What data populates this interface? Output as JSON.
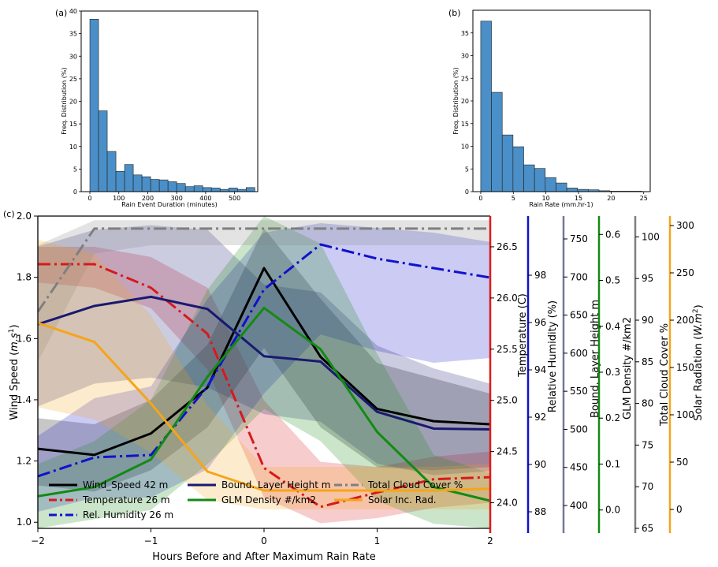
{
  "chart_data": [
    {
      "panel": "(a)",
      "type": "bar",
      "xlabel": "Rain Event Duration (minutes)",
      "ylabel": "Freq. Distribution (%)",
      "xlim": [
        -30,
        580
      ],
      "ylim": [
        0,
        40
      ],
      "xticks": [
        0,
        100,
        200,
        300,
        400,
        500
      ],
      "yticks": [
        0,
        5,
        10,
        15,
        20,
        25,
        30,
        35,
        40
      ],
      "bin_width": 30,
      "bin_starts": [
        0,
        30,
        60,
        90,
        120,
        150,
        180,
        210,
        240,
        270,
        300,
        330,
        360,
        390,
        420,
        450,
        480,
        510,
        540
      ],
      "values": [
        38.2,
        17.9,
        8.9,
        4.5,
        6.0,
        3.7,
        3.3,
        2.7,
        2.6,
        2.2,
        1.8,
        1.1,
        1.3,
        0.9,
        0.8,
        0.5,
        0.8,
        0.5,
        0.9
      ],
      "color": "#4a8fc7"
    },
    {
      "panel": "(b)",
      "type": "bar",
      "xlabel": "Rain Rate (mm.hr-1)",
      "ylabel": "Freq. Distribution (%)",
      "xlim": [
        -1.2,
        26
      ],
      "ylim": [
        0,
        40
      ],
      "xticks": [
        0,
        5,
        10,
        15,
        20,
        25
      ],
      "yticks": [
        0,
        5,
        10,
        15,
        20,
        25,
        30,
        35
      ],
      "bin_width": 1.65,
      "bin_starts": [
        0,
        1.65,
        3.3,
        4.95,
        6.6,
        8.25,
        9.9,
        11.55,
        13.2,
        14.85,
        16.5,
        18.15,
        19.8,
        21.45,
        23.1
      ],
      "values": [
        37.6,
        21.9,
        12.5,
        9.9,
        5.9,
        5.1,
        3.1,
        1.9,
        0.8,
        0.5,
        0.4,
        0.2,
        0.1,
        0.1,
        0.1
      ],
      "color": "#4a8fc7"
    },
    {
      "panel": "(c)",
      "type": "line",
      "xlabel": "Hours Before and After Maximum Rain Rate",
      "x": [
        -2,
        -1.5,
        -1,
        -0.5,
        0,
        0.5,
        1,
        1.5,
        2
      ],
      "xlim": [
        -2,
        2
      ],
      "xticks": [
        -2,
        -1,
        0,
        1,
        2
      ],
      "axes": [
        {
          "id": "ws",
          "label": "Wind Speed (m.s^1)",
          "label_plain": "Wind Speed (",
          "label_math": "m.s",
          "label_sup": "1",
          "label_end": ")",
          "range": [
            0.98,
            2.0
          ],
          "ticks": [
            1.0,
            1.2,
            1.4,
            1.6,
            1.8,
            2.0
          ],
          "decimals": 1,
          "color": "#000000",
          "side": "left"
        },
        {
          "id": "temp",
          "label": "Temperature (C)",
          "range": [
            23.75,
            26.8
          ],
          "ticks": [
            24.0,
            24.5,
            25.0,
            25.5,
            26.0,
            26.5
          ],
          "decimals": 1,
          "color": "#e0191b"
        },
        {
          "id": "rh",
          "label": "Relative Humidity (%)",
          "range": [
            87.3,
            100.5
          ],
          "ticks": [
            88,
            90,
            92,
            94,
            96,
            98
          ],
          "decimals": 0,
          "color": "#1111cc"
        },
        {
          "id": "blh",
          "label": "Bound. Layer Height m",
          "range": [
            370,
            780
          ],
          "ticks": [
            400,
            450,
            500,
            550,
            600,
            650,
            700,
            750
          ],
          "decimals": 0,
          "color": "#777799"
        },
        {
          "id": "glm",
          "label": "GLM Density #/km2",
          "range": [
            -0.04,
            0.64
          ],
          "ticks": [
            0.0,
            0.1,
            0.2,
            0.3,
            0.4,
            0.5,
            0.6
          ],
          "decimals": 1,
          "color": "#138a13"
        },
        {
          "id": "tcc",
          "label": "Total Cloud Cover %",
          "range": [
            65,
            102.5
          ],
          "ticks": [
            65,
            70,
            75,
            80,
            85,
            90,
            95,
            100
          ],
          "decimals": 0,
          "color": "#808080"
        },
        {
          "id": "sr",
          "label": "Solar Radiation (W.m^2)",
          "label_plain": "Solar Radiation (",
          "label_math": "W.m",
          "label_sup": "2",
          "label_end": ")",
          "range": [
            -20,
            310
          ],
          "ticks": [
            0,
            50,
            100,
            150,
            200,
            250,
            300
          ],
          "decimals": 0,
          "color": "#f5a51b"
        }
      ],
      "series": [
        {
          "name": "Wind_Speed 42 m",
          "axis": "ws",
          "color": "#000000",
          "dash": "solid",
          "values": [
            1.24,
            1.22,
            1.29,
            1.44,
            1.83,
            1.54,
            1.37,
            1.33,
            1.32
          ],
          "band_low": [
            1.12,
            1.1,
            1.17,
            1.31,
            1.57,
            1.31,
            1.18,
            1.17,
            1.18
          ],
          "band_high": [
            1.34,
            1.32,
            1.4,
            1.58,
            1.96,
            1.73,
            1.52,
            1.47,
            1.42
          ]
        },
        {
          "name": "Temperature 26 m",
          "axis": "temp",
          "color": "#d7191c",
          "dash": "dashdot",
          "values": [
            26.33,
            26.33,
            26.1,
            25.65,
            24.34,
            23.96,
            24.1,
            24.23,
            24.25
          ],
          "band_low": [
            26.15,
            26.1,
            25.9,
            25.3,
            24.05,
            23.8,
            23.85,
            23.95,
            24.0
          ],
          "band_high": [
            26.5,
            26.5,
            26.4,
            26.1,
            25.0,
            24.4,
            24.35,
            24.45,
            24.5
          ]
        },
        {
          "name": "Rel. Humidity 26 m",
          "axis": "rh",
          "color": "#1111cc",
          "dash": "dashdot",
          "values": [
            89.5,
            90.3,
            90.4,
            93.3,
            97.4,
            99.3,
            98.7,
            98.3,
            97.9
          ],
          "band_low": [
            88.0,
            88.6,
            88.6,
            89.8,
            93.0,
            95.5,
            94.8,
            94.3,
            94.5
          ],
          "band_high": [
            91.2,
            92.8,
            93.3,
            97.0,
            99.8,
            100.2,
            100.0,
            99.8,
            99.4
          ]
        },
        {
          "name": "Bound. Layer Height m",
          "axis": "blh",
          "color": "#191970",
          "dash": "solid",
          "values": [
            638,
            662,
            674,
            658,
            596,
            589,
            523,
            501,
            500
          ],
          "band_low": [
            530,
            560,
            568,
            555,
            520,
            510,
            455,
            440,
            445
          ],
          "band_high": [
            740,
            762,
            768,
            762,
            690,
            680,
            610,
            580,
            560
          ]
        },
        {
          "name": "GLM Density #/km2",
          "axis": "glm",
          "color": "#138a13",
          "dash": "solid",
          "values": [
            0.03,
            0.05,
            0.11,
            0.29,
            0.44,
            0.35,
            0.17,
            0.05,
            0.02
          ],
          "band_low": [
            -0.04,
            -0.02,
            0.0,
            0.1,
            0.22,
            0.15,
            0.02,
            -0.03,
            -0.04
          ],
          "band_high": [
            0.1,
            0.15,
            0.24,
            0.48,
            0.64,
            0.58,
            0.34,
            0.12,
            0.08
          ]
        },
        {
          "name": "Total Cloud Cover %",
          "axis": "tcc",
          "color": "#7f7f7f",
          "dash": "dashdot",
          "values": [
            91,
            101,
            101,
            101,
            101,
            101,
            101,
            101,
            101
          ],
          "band_low": [
            85,
            98,
            99,
            99,
            99,
            99,
            99,
            99,
            99
          ],
          "band_high": [
            99,
            102,
            102,
            102,
            102,
            102,
            102,
            102,
            102
          ]
        },
        {
          "name": "Solar Inc. Rad.",
          "axis": "sr",
          "color": "#f5a51b",
          "dash": "solid",
          "values": [
            197,
            177,
            112,
            40,
            20,
            20,
            20,
            20,
            22
          ],
          "band_low": [
            108,
            95,
            60,
            10,
            0,
            0,
            0,
            0,
            0
          ],
          "band_high": [
            285,
            270,
            205,
            110,
            45,
            45,
            45,
            45,
            48
          ]
        }
      ],
      "legend_order": [
        "Wind_Speed 42 m",
        "Temperature 26 m",
        "Rel. Humidity 26 m",
        "Bound. Layer Height m",
        "GLM Density #/km2",
        "Total Cloud Cover %",
        "Solar Inc. Rad."
      ]
    }
  ]
}
